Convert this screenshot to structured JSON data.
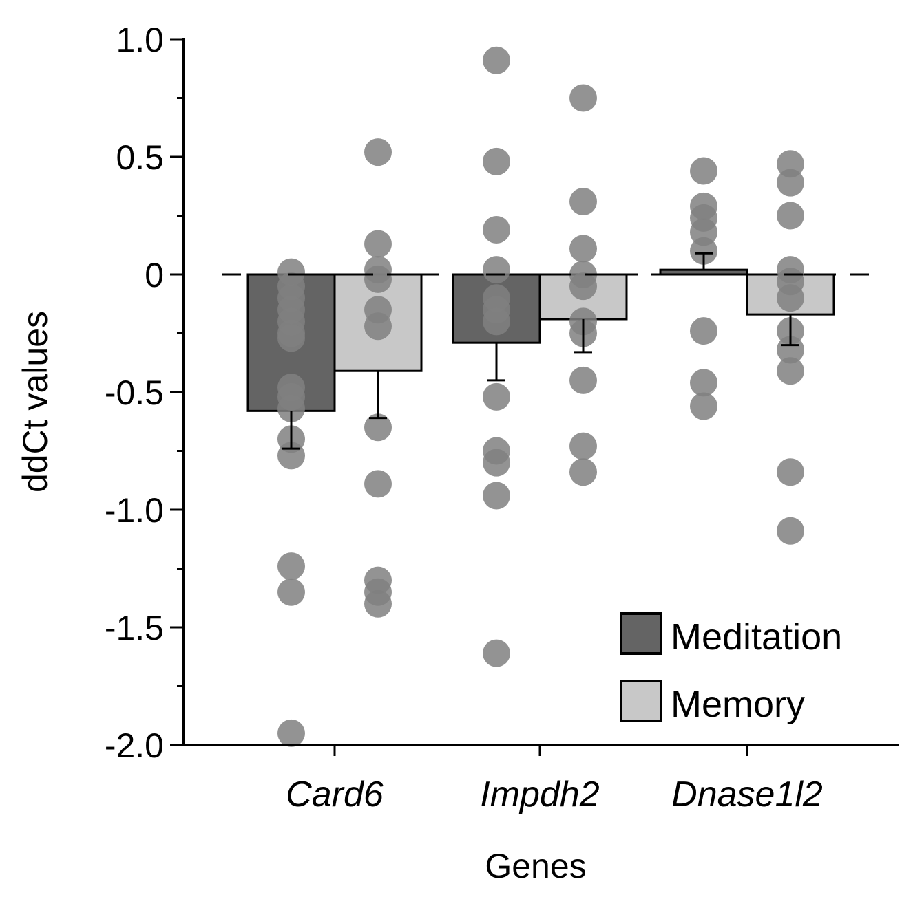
{
  "chart_data": {
    "type": "bar",
    "title": "",
    "xlabel": "Genes",
    "ylabel": "ddCt values",
    "ylim": [
      -2.0,
      1.0
    ],
    "ytick_values": [
      1.0,
      0.5,
      0,
      -0.5,
      -1.0,
      -1.5,
      -2.0
    ],
    "ytick_labels": [
      "1.0",
      "0.5",
      "0",
      "-0.5",
      "-1.0",
      "-1.5",
      "-2.0"
    ],
    "categories": [
      "Card6",
      "Impdh2",
      "Dnase1l2"
    ],
    "legend_position": "bottom-right",
    "reference_line": 0,
    "series": [
      {
        "name": "Meditation",
        "color": "#646464",
        "values": [
          -0.58,
          -0.29,
          0.02
        ],
        "errors": [
          0.16,
          0.16,
          0.07
        ],
        "points": [
          [
            0.01,
            -0.05,
            -0.1,
            -0.15,
            -0.2,
            -0.25,
            -0.27,
            -0.48,
            -0.52,
            -0.57,
            -0.7,
            -0.77,
            -1.24,
            -1.35,
            -1.95
          ],
          [
            0.91,
            0.48,
            0.19,
            0.02,
            -0.1,
            -0.15,
            -0.2,
            -0.52,
            -0.75,
            -0.8,
            -0.94,
            -1.61
          ],
          [
            0.44,
            0.29,
            0.24,
            0.18,
            0.1,
            -0.24,
            -0.46,
            -0.56
          ]
        ]
      },
      {
        "name": "Memory",
        "color": "#c8c8c8",
        "values": [
          -0.41,
          -0.19,
          -0.17
        ],
        "errors": [
          0.2,
          0.14,
          0.13
        ],
        "points": [
          [
            0.52,
            0.13,
            0.02,
            -0.02,
            -0.15,
            -0.22,
            -0.65,
            -0.89,
            -1.3,
            -1.35,
            -1.4
          ],
          [
            0.75,
            0.31,
            0.11,
            0.0,
            -0.05,
            -0.2,
            -0.25,
            -0.45,
            -0.73,
            -0.84
          ],
          [
            0.47,
            0.39,
            0.25,
            0.02,
            -0.03,
            -0.1,
            -0.24,
            -0.32,
            -0.41,
            -0.84,
            -1.09
          ]
        ]
      }
    ]
  }
}
